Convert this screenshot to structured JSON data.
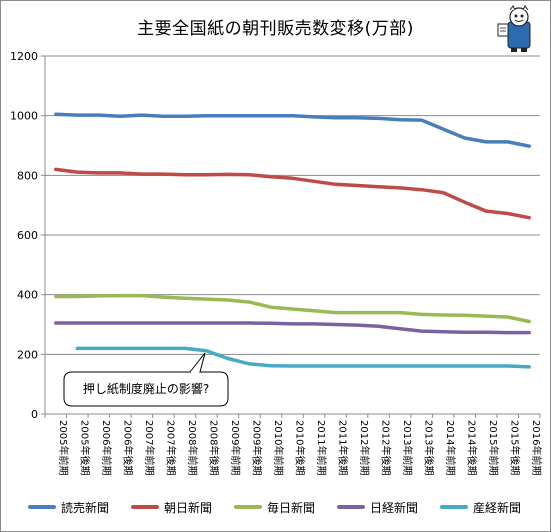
{
  "chart_data": {
    "type": "line",
    "title": "主要全国紙の朝刊販売数変移(万部)",
    "categories": [
      "2005年前期",
      "2005年後期",
      "2006年前期",
      "2006年後期",
      "2007年前期",
      "2007年後期",
      "2008年前期",
      "2008年後期",
      "2009年前期",
      "2009年後期",
      "2010年前期",
      "2010年後期",
      "2011年前期",
      "2011年後期",
      "2012年前期",
      "2012年後期",
      "2013年前期",
      "2013年後期",
      "2014年前期",
      "2014年後期",
      "2015年前期",
      "2015年後期",
      "2016年前期"
    ],
    "ylim": [
      0,
      1200
    ],
    "yticks": [
      "0",
      "200",
      "400",
      "600",
      "800",
      "1000",
      "1200"
    ],
    "grid": "horizontal",
    "legend_position": "bottom",
    "series": [
      {
        "name": "読売新聞",
        "color": "#4a7ebb",
        "values": [
          1005,
          1002,
          1002,
          998,
          1002,
          998,
          998,
          1000,
          1000,
          1000,
          1000,
          1000,
          996,
          993,
          993,
          991,
          986,
          985,
          955,
          925,
          912,
          912,
          898
        ]
      },
      {
        "name": "朝日新聞",
        "color": "#be4b48",
        "values": [
          820,
          811,
          808,
          808,
          804,
          804,
          802,
          802,
          803,
          802,
          795,
          790,
          780,
          770,
          766,
          762,
          758,
          752,
          742,
          710,
          680,
          672,
          658
        ]
      },
      {
        "name": "毎日新聞",
        "color": "#98b954",
        "values": [
          394,
          394,
          396,
          397,
          397,
          392,
          388,
          385,
          382,
          375,
          358,
          352,
          346,
          340,
          340,
          340,
          340,
          334,
          332,
          331,
          328,
          325,
          310
        ]
      },
      {
        "name": "日経新聞",
        "color": "#7d60a0",
        "values": [
          305,
          305,
          305,
          305,
          305,
          305,
          305,
          305,
          305,
          305,
          304,
          302,
          302,
          300,
          298,
          294,
          286,
          278,
          276,
          274,
          274,
          273,
          273
        ]
      },
      {
        "name": "産経新聞",
        "color": "#46aac5",
        "values": [
          null,
          220,
          220,
          220,
          220,
          220,
          220,
          212,
          186,
          168,
          162,
          161,
          161,
          161,
          161,
          161,
          161,
          161,
          161,
          161,
          161,
          161,
          158
        ]
      }
    ],
    "annotation": "押し紙制度廃止の影響?"
  }
}
